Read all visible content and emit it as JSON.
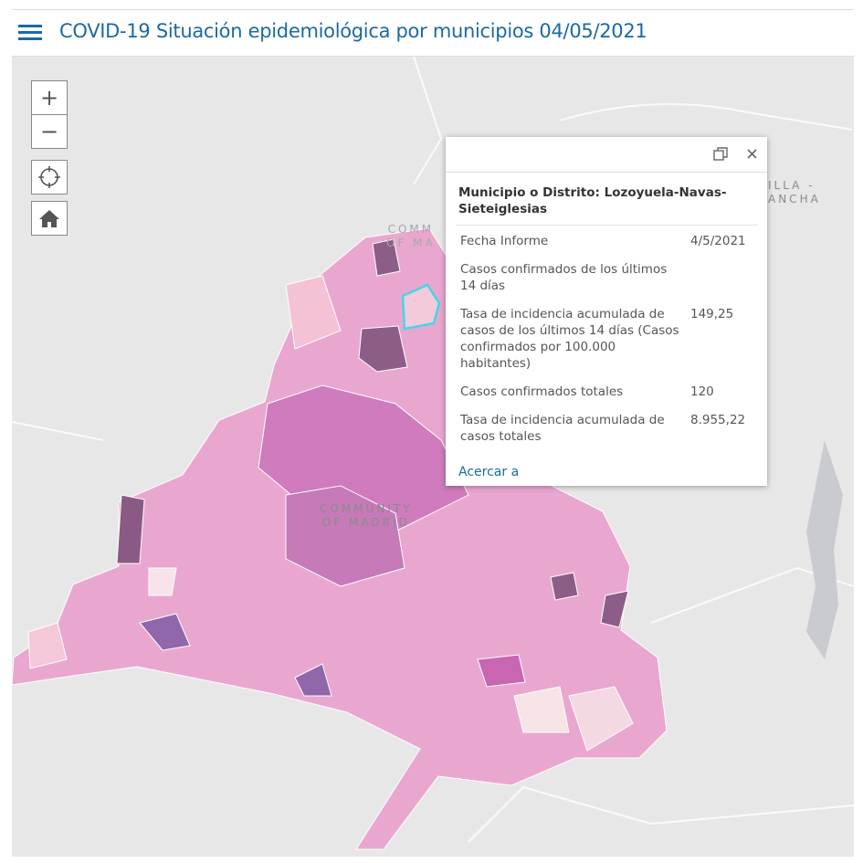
{
  "header": {
    "title": "COVID-19 Situación epidemiológica por municipios 04/05/2021"
  },
  "map_controls": {
    "zoom_in": "+",
    "zoom_out": "−"
  },
  "map_labels": {
    "top": [
      "COMM",
      "OF MA"
    ],
    "center": [
      "COMMUNITY",
      "OF MADRID"
    ],
    "east": [
      "ILLA -",
      "ANCHA"
    ]
  },
  "popup": {
    "title": "Municipio o Distrito: Lozoyuela-Navas-Sieteiglesias",
    "fields": [
      {
        "label": "Fecha Informe",
        "value": "4/5/2021"
      },
      {
        "label": "Casos confirmados de los últimos 14 días"
      },
      {
        "label": "Tasa de incidencia acumulada de casos de los últimos 14 días (Casos confirmados por 100.000 habitantes)",
        "value": "149,25"
      },
      {
        "label": "Casos confirmados totales",
        "value": "120"
      },
      {
        "label": "Tasa de incidencia acumulada de casos totales",
        "value": "8.955,22"
      }
    ],
    "link": "Acercar a"
  }
}
